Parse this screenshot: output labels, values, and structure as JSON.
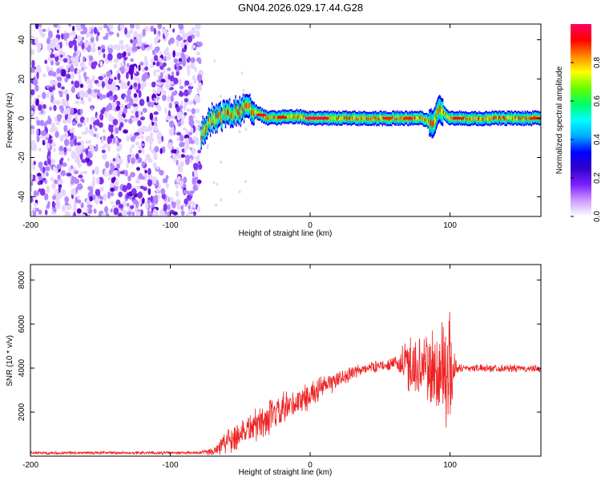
{
  "figure_title": "GN04.2026.029.17.44.G28",
  "chart_data": [
    {
      "type": "heatmap",
      "title": "GN04.2026.029.17.44.G28",
      "xlabel": "Height of straight line (km)",
      "ylabel": "Frequency (Hz)",
      "xlim": [
        -200,
        165
      ],
      "ylim": [
        -50,
        48
      ],
      "xticks": [
        -200,
        -100,
        0,
        100
      ],
      "yticks": [
        -40,
        -20,
        0,
        20,
        40
      ],
      "grid": false,
      "colorbar": {
        "label": "Normalized spectral amplitude",
        "range": [
          0,
          1
        ],
        "ticks": [
          0.0,
          0.2,
          0.4,
          0.6,
          0.8
        ],
        "colormap": [
          "#ffffff",
          "#cc99ff",
          "#7a1fff",
          "#3300cc",
          "#0000ff",
          "#00aaff",
          "#00ffff",
          "#00ff66",
          "#66ff00",
          "#ffff00",
          "#ff8800",
          "#ff0000",
          "#ff0066"
        ]
      },
      "regions": [
        {
          "name": "noise",
          "x_range": [
            -200,
            -78
          ],
          "freq_range": [
            -48,
            48
          ],
          "amplitude": "low (0.05-0.15)"
        },
        {
          "name": "signal ridge",
          "x_range": [
            -78,
            165
          ],
          "center_freq": [
            [
              -78,
              -8
            ],
            [
              -70,
              0
            ],
            [
              -60,
              2
            ],
            [
              -45,
              5
            ],
            [
              -30,
              0
            ],
            [
              -10,
              1
            ],
            [
              0,
              0
            ],
            [
              20,
              0
            ],
            [
              50,
              0
            ],
            [
              80,
              0
            ],
            [
              88,
              -3
            ],
            [
              92,
              5
            ],
            [
              100,
              0
            ],
            [
              165,
              0
            ]
          ],
          "amplitude": "high (0.4-1.0)"
        }
      ]
    },
    {
      "type": "line",
      "title": "",
      "xlabel": "Height of straight line (km)",
      "ylabel": "SNR (10 * v/v)",
      "xlim": [
        -200,
        165
      ],
      "ylim": [
        0,
        8700
      ],
      "xticks": [
        -200,
        -100,
        0,
        100
      ],
      "yticks": [
        2000,
        4000,
        6000,
        8000
      ],
      "grid": false,
      "series": [
        {
          "name": "SNR",
          "color": "#ee2222",
          "envelope": {
            "x": [
              -200,
              -80,
              -70,
              -60,
              -40,
              -20,
              0,
              20,
              40,
              60,
              70,
              80,
              90,
              95,
              100,
              105,
              110,
              130,
              165
            ],
            "mean": [
              150,
              150,
              200,
              700,
              1400,
              2000,
              2800,
              3500,
              4000,
              4200,
              4150,
              4100,
              3800,
              3900,
              4000,
              4000,
              4000,
              4000,
              3950
            ],
            "amplitude": [
              80,
              80,
              200,
              800,
              900,
              1000,
              700,
              500,
              300,
              300,
              1600,
              1700,
              2500,
              3800,
              2800,
              300,
              200,
              200,
              200
            ]
          }
        }
      ]
    }
  ]
}
